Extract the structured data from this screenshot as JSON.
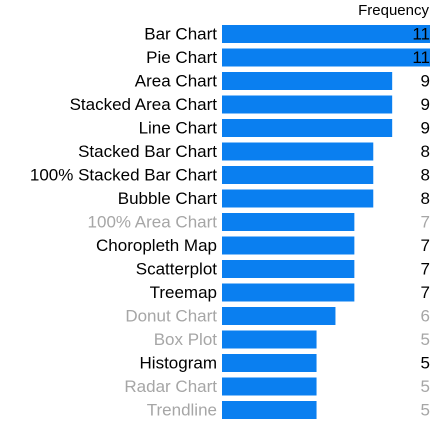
{
  "chart_data": {
    "type": "bar",
    "orientation": "horizontal",
    "value_header": "Frequency",
    "bar_color": "#0a7ff0",
    "text_color": "#000000",
    "muted_text_color": "#a6a6a6",
    "xlim": [
      0,
      11
    ],
    "categories": [
      "Bar Chart",
      "Pie Chart",
      "Area Chart",
      "Stacked Area Chart",
      "Line Chart",
      "Stacked Bar Chart",
      "100% Stacked Bar Chart",
      "Bubble Chart",
      "100% Area Chart",
      "Choropleth Map",
      "Scatterplot",
      "Treemap",
      "Donut Chart",
      "Box Plot",
      "Histogram",
      "Radar Chart",
      "Trendline"
    ],
    "values": [
      11,
      11,
      9,
      9,
      9,
      8,
      8,
      8,
      7,
      7,
      7,
      7,
      6,
      5,
      5,
      5,
      5
    ],
    "muted": [
      false,
      false,
      false,
      false,
      false,
      false,
      false,
      false,
      true,
      false,
      false,
      false,
      true,
      true,
      false,
      true,
      true
    ]
  }
}
